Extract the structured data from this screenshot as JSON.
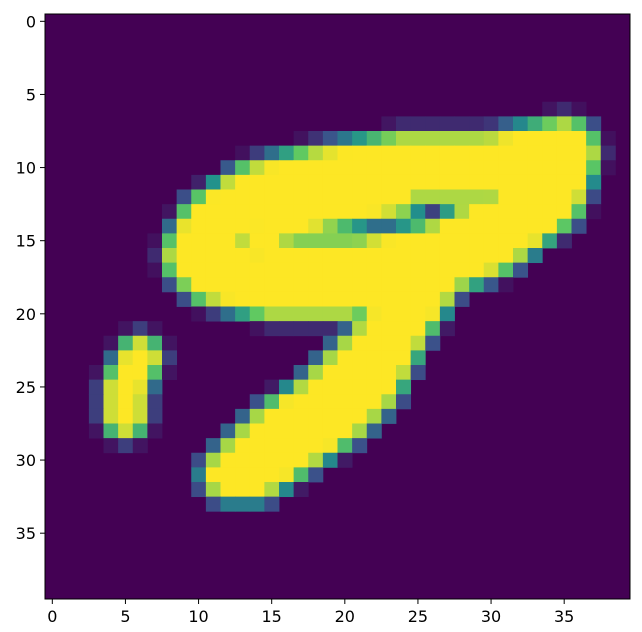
{
  "chart_data": {
    "type": "heatmap",
    "title": "",
    "xlabel": "",
    "ylabel": "",
    "grid_size": [
      40,
      40
    ],
    "xlim": [
      -0.5,
      39.5
    ],
    "ylim": [
      39.5,
      -0.5
    ],
    "xticks": [
      0,
      5,
      10,
      15,
      20,
      25,
      30,
      35
    ],
    "yticks": [
      0,
      5,
      10,
      15,
      20,
      25,
      30,
      35
    ],
    "xtick_labels": [
      "0",
      "5",
      "10",
      "15",
      "20",
      "25",
      "30",
      "35"
    ],
    "ytick_labels": [
      "0",
      "5",
      "10",
      "15",
      "20",
      "25",
      "30",
      "35"
    ],
    "value_range": [
      0,
      1
    ],
    "colormap": "viridis",
    "colors": {
      "background": "#440154",
      "low_mid": "#3b528b",
      "mid": "#21918c",
      "high_mid": "#5ec962",
      "high": "#fde725"
    },
    "grid": false,
    "legend": "none",
    "description_of_content": "",
    "strokes": [
      {
        "points": [
          [
            35,
            9
          ],
          [
            30,
            10
          ],
          [
            24,
            10
          ],
          [
            18,
            11
          ],
          [
            14,
            12
          ],
          [
            11,
            14
          ],
          [
            10,
            16
          ],
          [
            11,
            17
          ],
          [
            15,
            18
          ],
          [
            20,
            18
          ],
          [
            25,
            17
          ],
          [
            30,
            15
          ],
          [
            34,
            12
          ],
          [
            35,
            9
          ]
        ],
        "width": 1.6
      },
      {
        "points": [
          [
            24,
            12
          ],
          [
            19,
            13
          ],
          [
            15,
            14
          ],
          [
            14,
            15
          ],
          [
            16,
            16
          ],
          [
            21,
            16
          ],
          [
            26,
            15
          ],
          [
            30,
            13
          ],
          [
            32,
            12
          ]
        ],
        "width": 0.5
      },
      {
        "points": [
          [
            26,
            16
          ],
          [
            24,
            19
          ],
          [
            22,
            22
          ],
          [
            20,
            24
          ],
          [
            18,
            26
          ],
          [
            15,
            28
          ],
          [
            13,
            30
          ],
          [
            12,
            31
          ],
          [
            14,
            31
          ],
          [
            17,
            29
          ],
          [
            20,
            27
          ],
          [
            22,
            25
          ],
          [
            23,
            23
          ],
          [
            24,
            21
          ],
          [
            26,
            18
          ]
        ],
        "width": 1.0
      },
      {
        "points": [
          [
            6,
            23
          ],
          [
            5,
            25
          ],
          [
            5,
            27
          ]
        ],
        "width": 0.7
      }
    ]
  }
}
